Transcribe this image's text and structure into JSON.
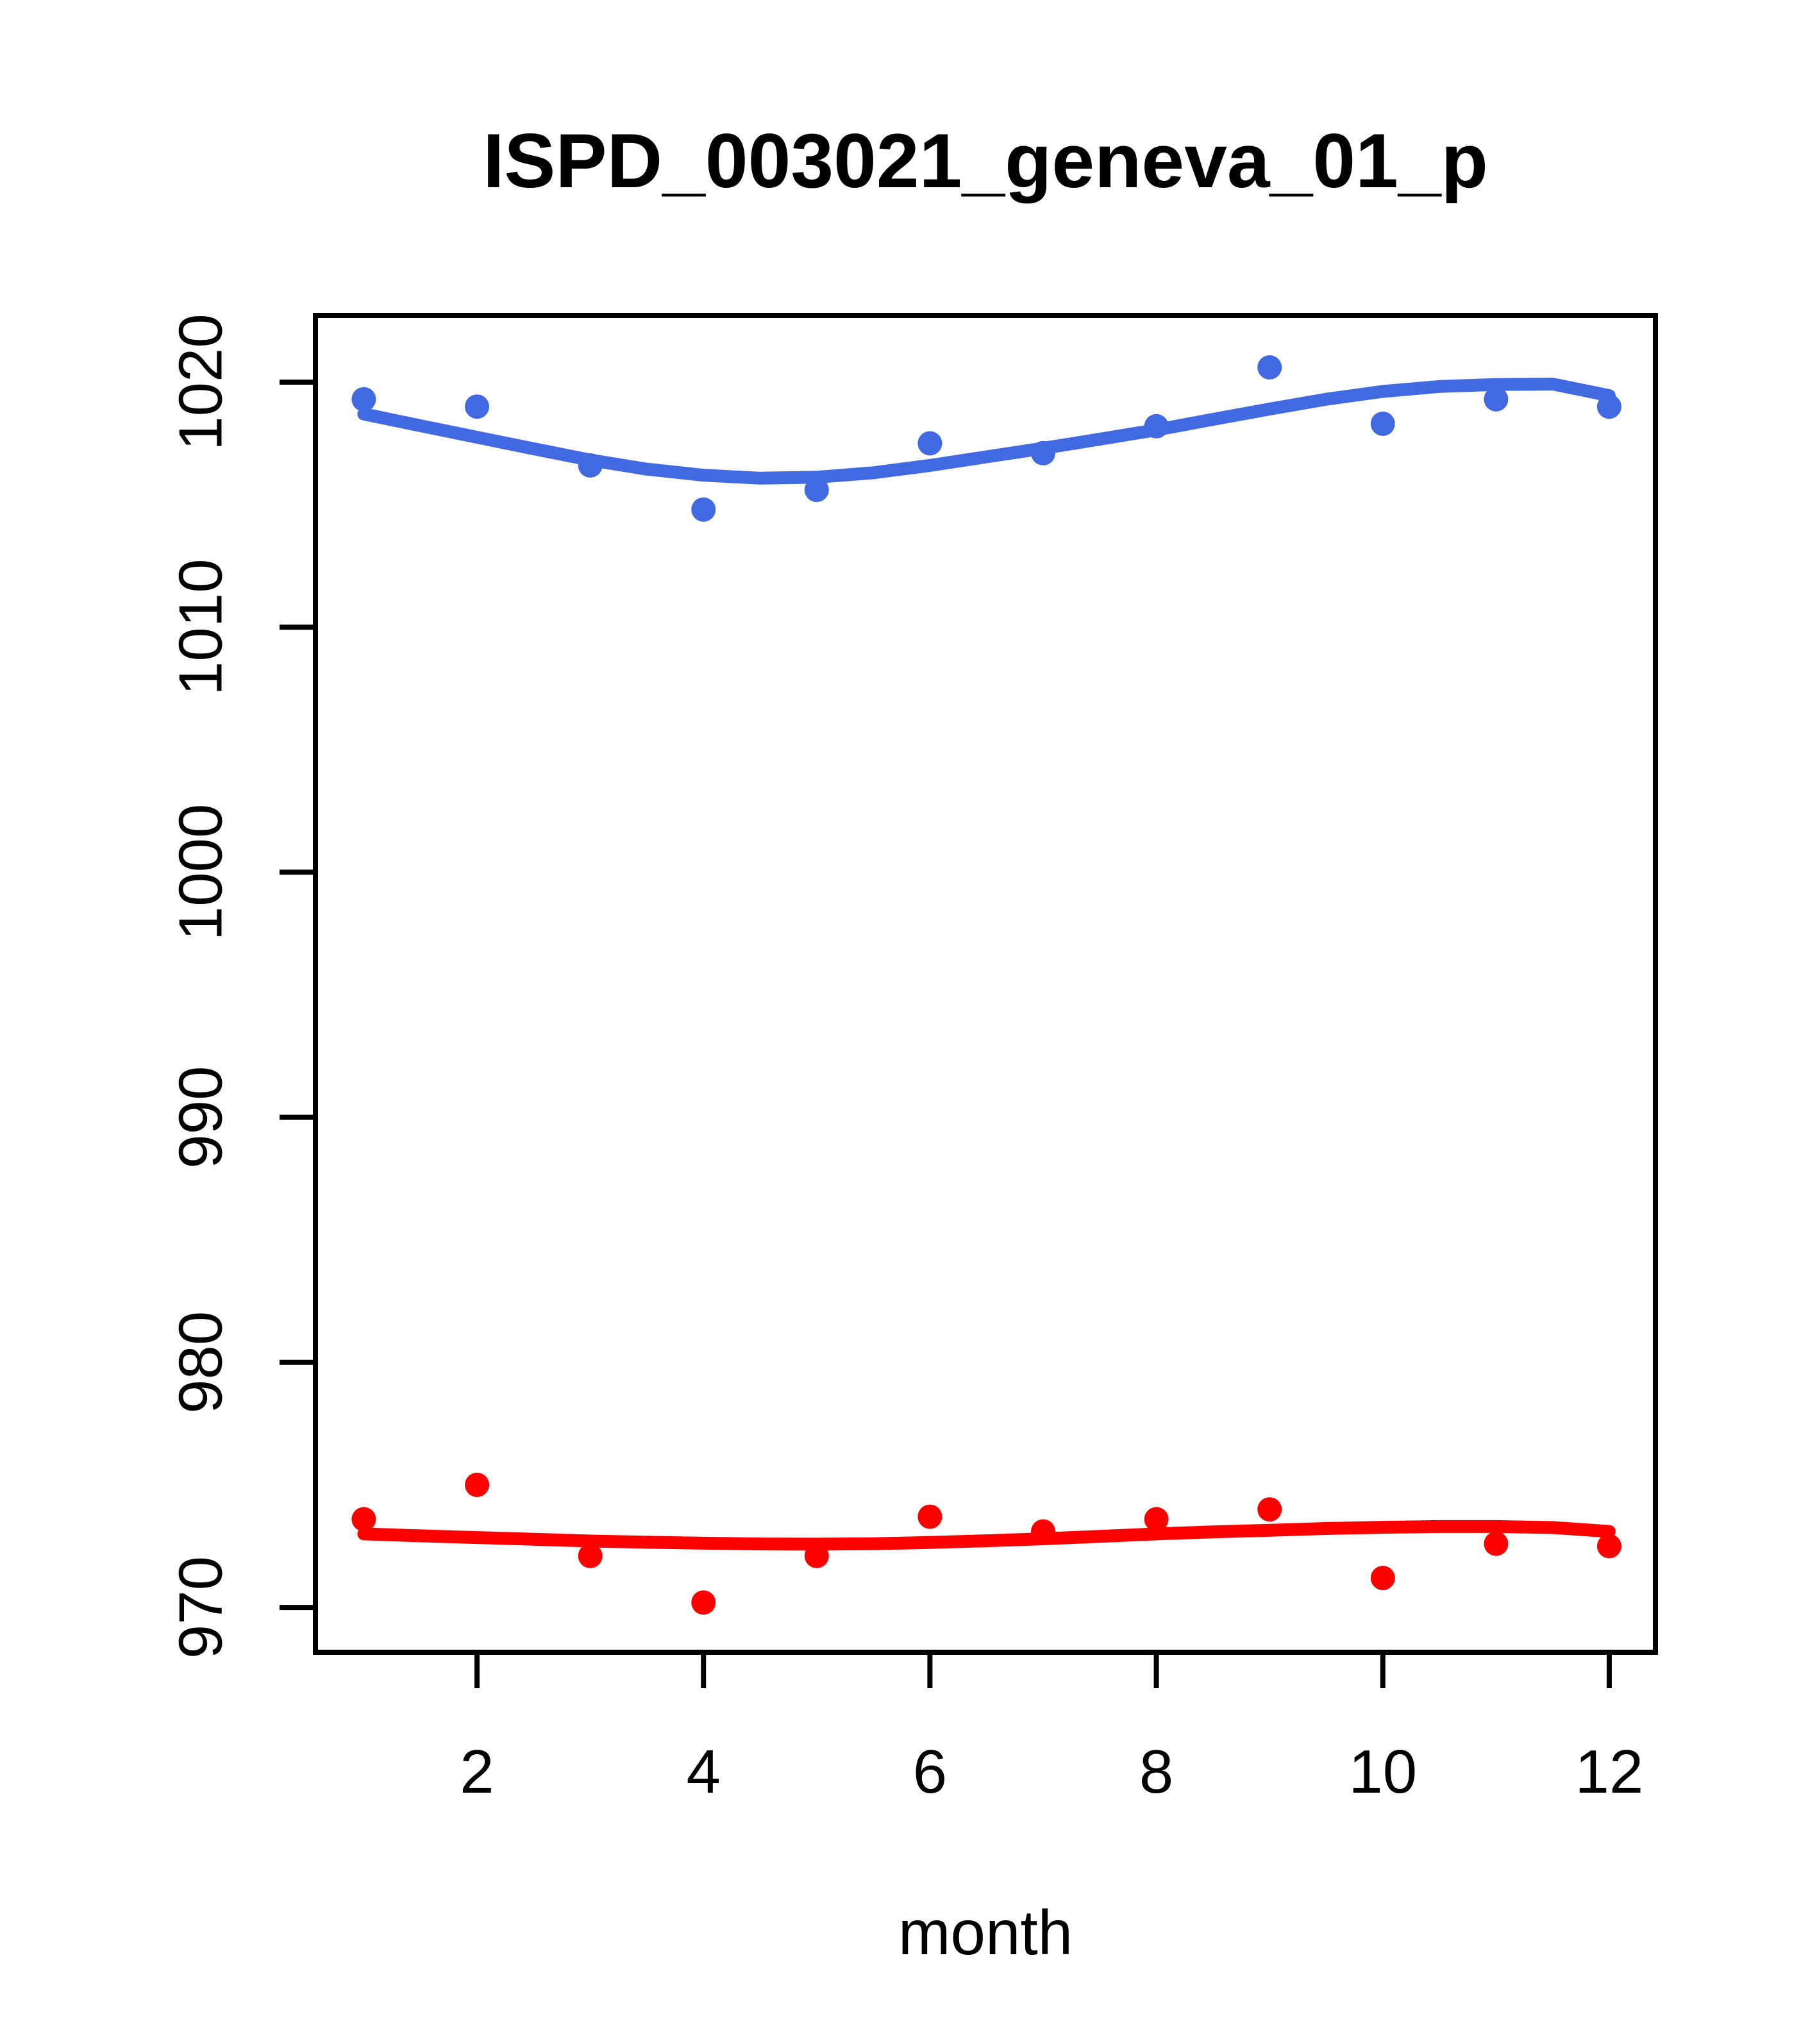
{
  "chart_data": {
    "type": "scatter",
    "title": "ISPD_003021_geneva_01_p",
    "xlabel": "month",
    "ylabel": "",
    "grid": false,
    "legend": "none",
    "x_ticks": [
      2,
      4,
      6,
      8,
      10,
      12
    ],
    "y_ticks": [
      970,
      980,
      990,
      1000,
      1010,
      1020
    ],
    "xlim": [
      0.573,
      12.408
    ],
    "ylim": [
      968.17,
      1022.72
    ],
    "x": [
      1,
      2,
      3,
      4,
      5,
      6,
      7,
      8,
      9,
      10,
      11,
      12
    ],
    "series": [
      {
        "name": "blue",
        "color": "#4169e1",
        "marker": "filled-circle",
        "points": [
          1019.3,
          1019.0,
          1016.6,
          1014.8,
          1015.6,
          1017.5,
          1017.1,
          1018.2,
          1020.6,
          1018.3,
          1019.3,
          1019.0
        ],
        "smooth_line": {
          "x": [
            1,
            1.5,
            2,
            2.5,
            3,
            3.5,
            4,
            4.5,
            5,
            5.5,
            6,
            6.5,
            7,
            7.5,
            8,
            8.5,
            9,
            9.5,
            10,
            10.5,
            11,
            11.5,
            12
          ],
          "y": [
            1018.7,
            1018.22,
            1017.75,
            1017.28,
            1016.82,
            1016.45,
            1016.2,
            1016.08,
            1016.12,
            1016.3,
            1016.6,
            1016.95,
            1017.3,
            1017.67,
            1018.05,
            1018.48,
            1018.9,
            1019.3,
            1019.62,
            1019.82,
            1019.9,
            1019.92,
            1019.45
          ]
        }
      },
      {
        "name": "red",
        "color": "#ff0000",
        "marker": "filled-circle",
        "points": [
          973.6,
          975.0,
          972.1,
          970.2,
          972.1,
          973.7,
          973.1,
          973.6,
          974.0,
          971.2,
          972.6,
          972.5
        ],
        "smooth_line": {
          "x": [
            1,
            1.5,
            2,
            2.5,
            3,
            3.5,
            4,
            4.5,
            5,
            5.5,
            6,
            6.5,
            7,
            7.5,
            8,
            8.5,
            9,
            9.5,
            10,
            10.5,
            11,
            11.5,
            12
          ],
          "y": [
            973.0,
            972.92,
            972.85,
            972.78,
            972.71,
            972.66,
            972.62,
            972.59,
            972.58,
            972.6,
            972.65,
            972.72,
            972.8,
            972.9,
            973.0,
            973.08,
            973.15,
            973.22,
            973.27,
            973.3,
            973.3,
            973.26,
            973.1
          ]
        }
      }
    ],
    "colors": {
      "axis": "#000000",
      "background": "#ffffff",
      "blue_series": "#4169e1",
      "red_series": "#ff0000"
    }
  }
}
